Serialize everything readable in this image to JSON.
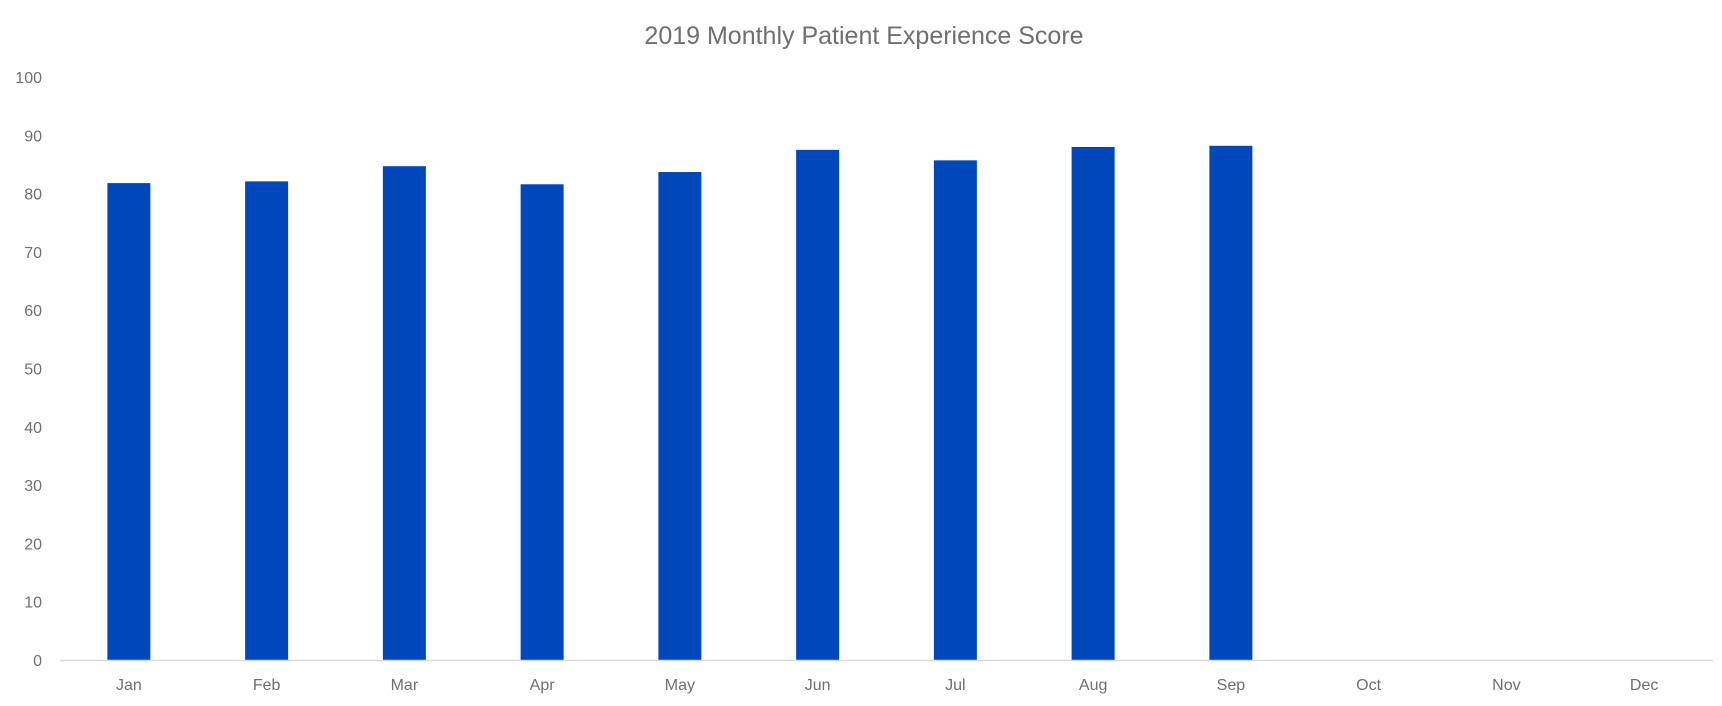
{
  "chart_data": {
    "type": "bar",
    "title": "2019 Monthly Patient Experience Score",
    "xlabel": "",
    "ylabel": "",
    "categories": [
      "Jan",
      "Feb",
      "Mar",
      "Apr",
      "May",
      "Jun",
      "Jul",
      "Aug",
      "Sep",
      "Oct",
      "Nov",
      "Dec"
    ],
    "values": [
      81.8,
      82.1,
      84.7,
      81.6,
      83.7,
      87.5,
      85.7,
      88.0,
      88.2,
      null,
      null,
      null
    ],
    "ylim": [
      0,
      100
    ],
    "yticks": [
      0,
      10,
      20,
      30,
      40,
      50,
      60,
      70,
      80,
      90,
      100
    ],
    "grid": false,
    "legend": "none",
    "colors": {
      "bar": "#0047BB",
      "axis": "#D9D9D9",
      "text": "#6F6F6F"
    }
  }
}
